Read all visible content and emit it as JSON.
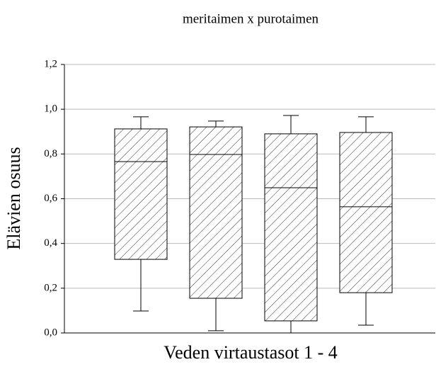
{
  "chart_data": {
    "type": "box",
    "title": "meritaimen x purotaimen",
    "xlabel": "Veden virtaustasot 1 - 4",
    "ylabel": "Elävien osuus",
    "categories": [
      null,
      null,
      null,
      null
    ],
    "boxes": [
      {
        "min": 0.098,
        "q1": 0.329,
        "median": 0.766,
        "q3": 0.912,
        "max": 0.966
      },
      {
        "min": 0.01,
        "q1": 0.155,
        "median": 0.798,
        "q3": 0.921,
        "max": 0.947
      },
      {
        "min": 0.0,
        "q1": 0.054,
        "median": 0.649,
        "q3": 0.89,
        "max": 0.972
      },
      {
        "min": 0.035,
        "q1": 0.18,
        "median": 0.564,
        "q3": 0.896,
        "max": 0.966
      }
    ],
    "color": "#000000",
    "ylim": [
      0,
      1.2
    ],
    "yticks": [
      {
        "value": 0,
        "label": "0,0"
      },
      {
        "value": 0.2,
        "label": "0,2"
      },
      {
        "value": 0.4,
        "label": "0,4"
      },
      {
        "value": 0.6,
        "label": "0,6"
      },
      {
        "value": 0.8,
        "label": "0,8"
      },
      {
        "value": 1.0,
        "label": "1,0"
      },
      {
        "value": 1.2,
        "label": "1,2"
      }
    ],
    "grid": true
  }
}
